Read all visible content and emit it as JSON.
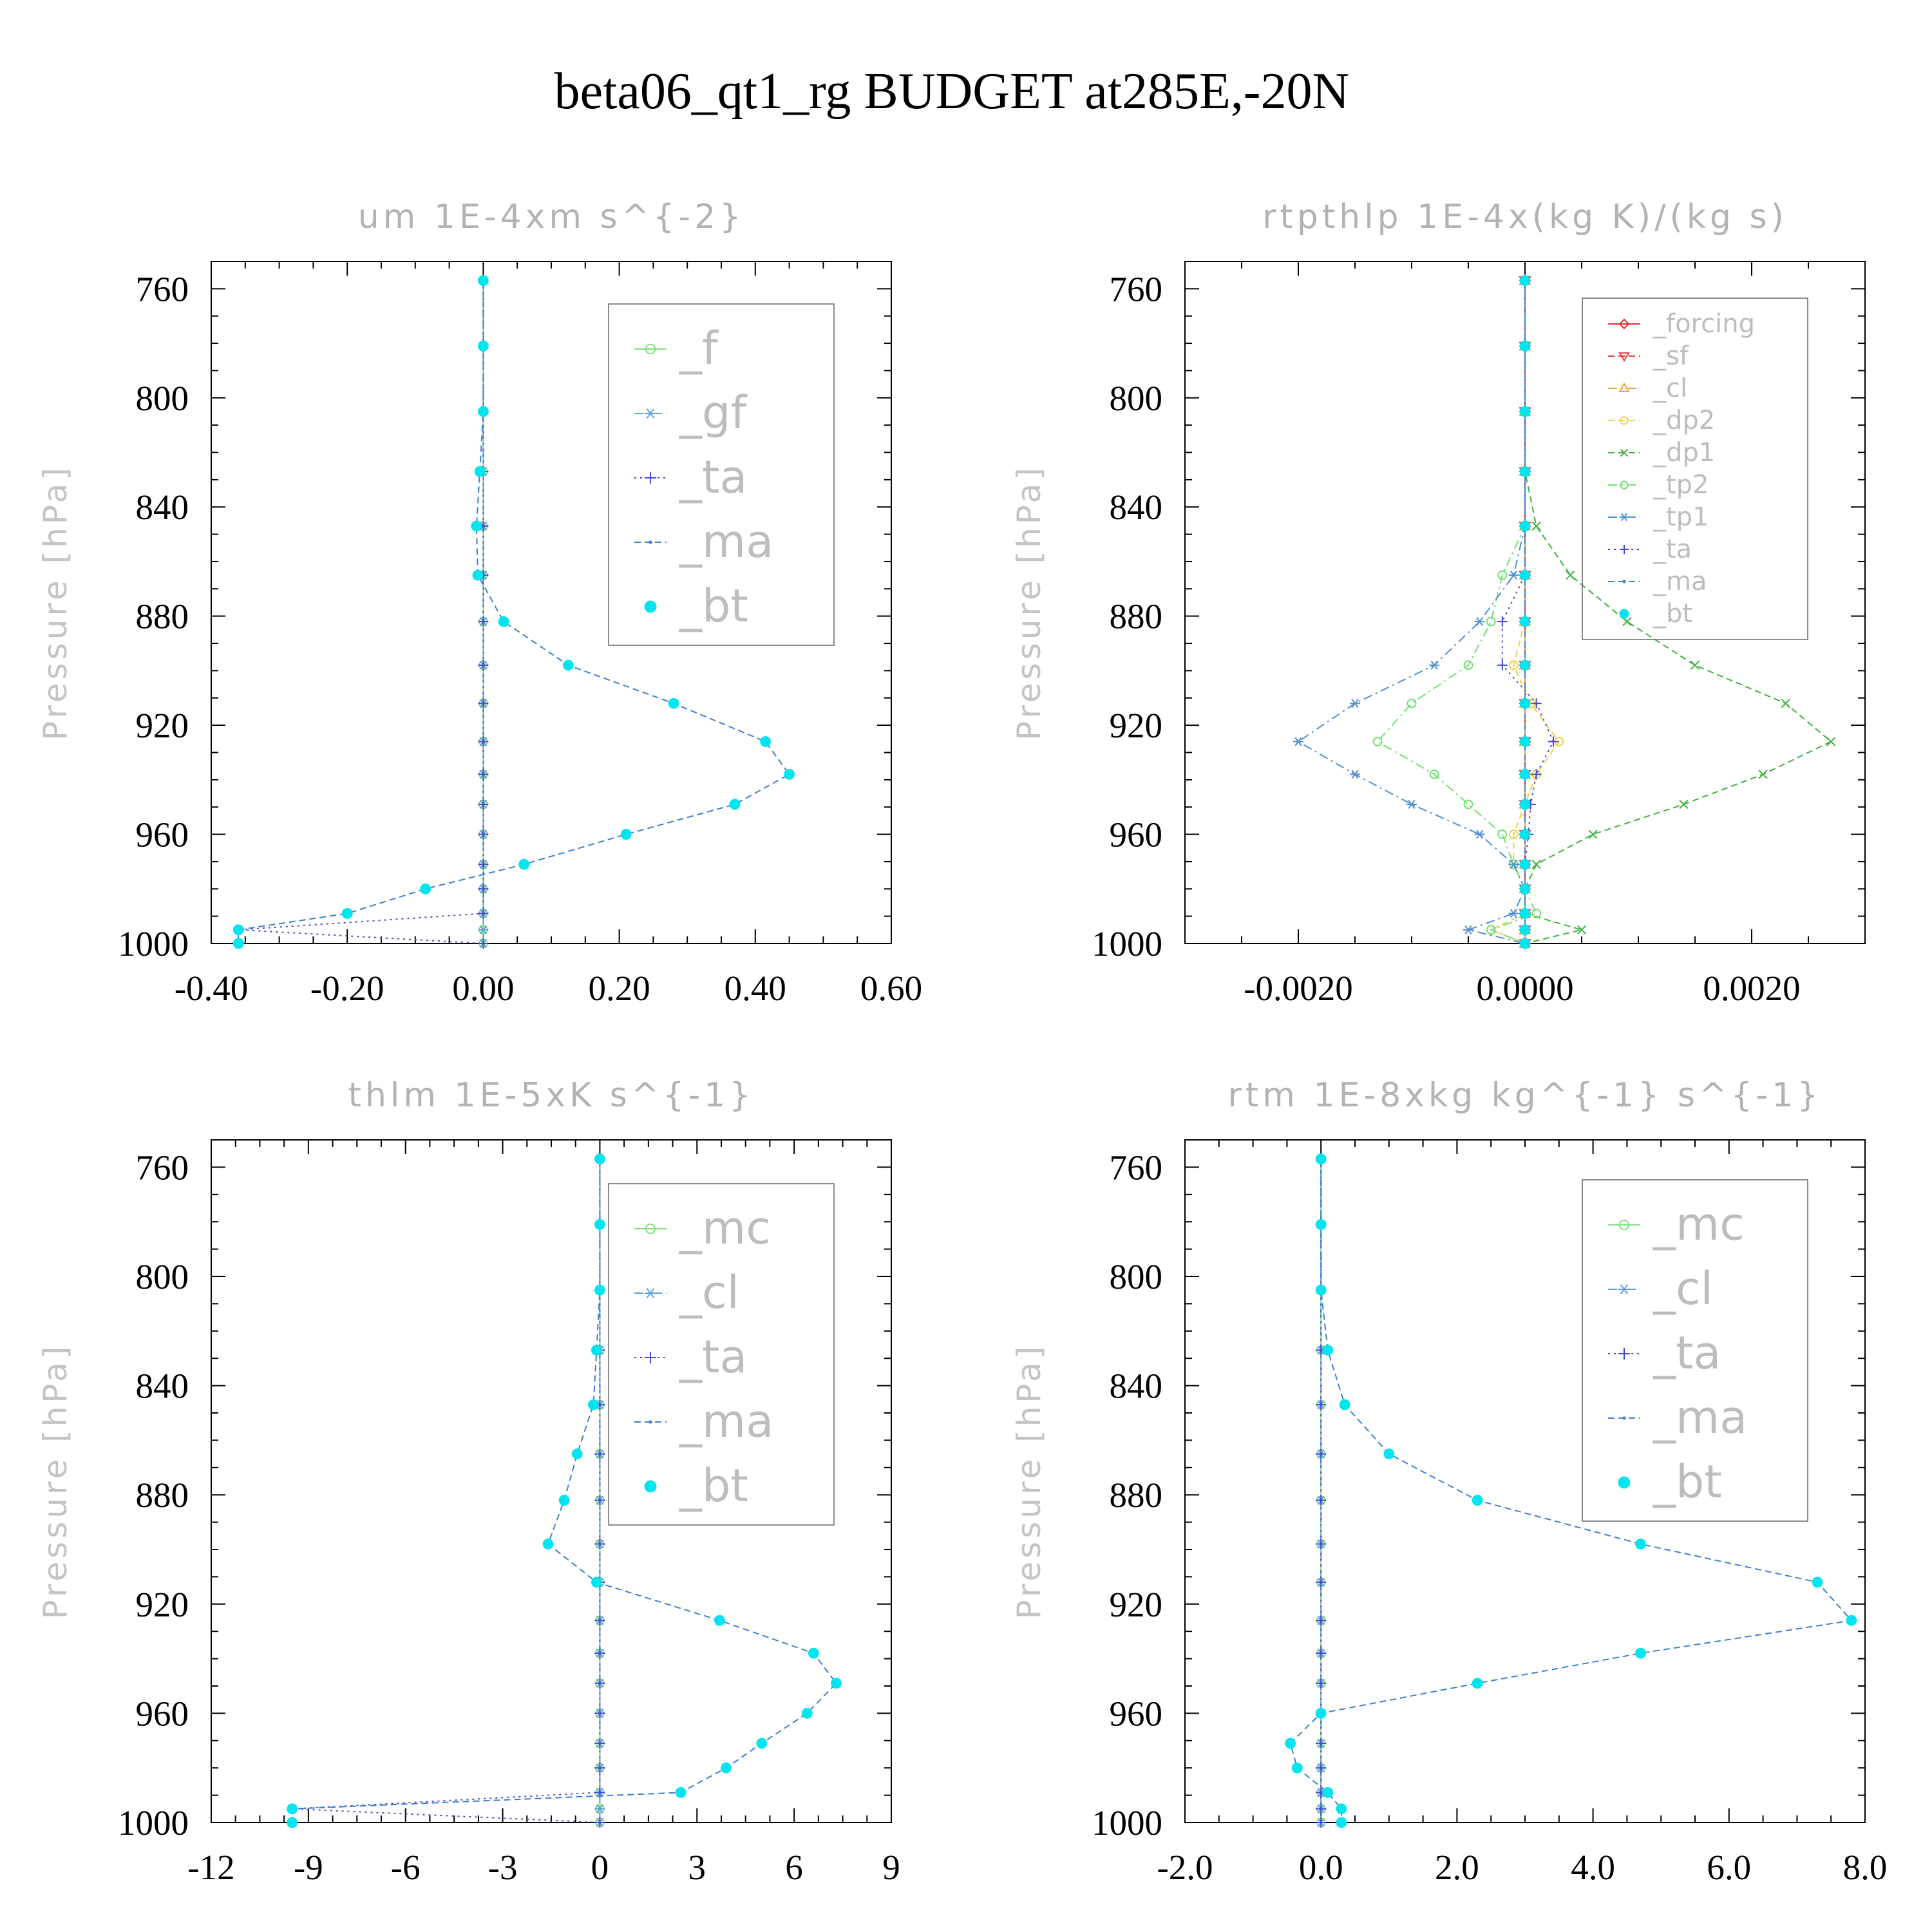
{
  "title": "beta06_qt1_rg  BUDGET at285E,-20N",
  "chart_data": [
    {
      "type": "line",
      "title": "um  1E-4xm s^{-2}",
      "ylabel": "Pressure [hPa]",
      "xlim": [
        -0.4,
        0.6
      ],
      "xticks": [
        "-0.40",
        "-0.20",
        "0.00",
        "0.20",
        "0.40",
        "0.60"
      ],
      "ylim": [
        750,
        1000
      ],
      "yticks": [
        "760",
        "800",
        "840",
        "880",
        "920",
        "960",
        "1000"
      ],
      "y": [
        757,
        781,
        805,
        827,
        847,
        865,
        882,
        898,
        912,
        926,
        938,
        949,
        960,
        971,
        980,
        989,
        995,
        1000
      ],
      "legend_placement": "upper-right",
      "series": [
        {
          "name": "_f",
          "color": "#80e080",
          "marker": "circle-open",
          "dash": "solid",
          "values": [
            0,
            0,
            0,
            0,
            0,
            0,
            0,
            0,
            0,
            0,
            0,
            0,
            0,
            0,
            0,
            0,
            0,
            0
          ]
        },
        {
          "name": "_gf",
          "color": "#5ea0d8",
          "marker": "asterisk",
          "dash": "dashdot",
          "values": [
            0,
            0,
            0,
            0,
            0,
            0,
            0,
            0,
            0,
            0,
            0,
            0,
            0,
            0,
            0,
            0,
            0,
            0
          ]
        },
        {
          "name": "_ta",
          "color": "#4848d0",
          "marker": "plus",
          "dash": "dot",
          "values": [
            0,
            0,
            0,
            0,
            0,
            0,
            0,
            0,
            0,
            0,
            0,
            0,
            0,
            0,
            0,
            0,
            -0.36,
            0
          ]
        },
        {
          "name": "_ma",
          "color": "#3d7fd0",
          "marker": "dot",
          "dash": "dash",
          "values": [
            0,
            0,
            0,
            -0.005,
            -0.01,
            -0.008,
            0.03,
            0.125,
            0.28,
            0.415,
            0.45,
            0.37,
            0.21,
            0.06,
            -0.085,
            -0.2,
            -0.36,
            -0.36
          ]
        },
        {
          "name": "_bt",
          "color": "#00e5ee",
          "marker": "dot-filled",
          "dash": "none",
          "values": [
            0,
            0,
            0,
            -0.005,
            -0.01,
            -0.008,
            0.03,
            0.125,
            0.28,
            0.415,
            0.45,
            0.37,
            0.21,
            0.06,
            -0.085,
            -0.2,
            -0.36,
            -0.36
          ]
        }
      ]
    },
    {
      "type": "line",
      "title": "rtpthlp  1E-4x(kg K)/(kg s)",
      "ylabel": "Pressure [hPa]",
      "xlim": [
        -0.003,
        0.003
      ],
      "xticks": [
        "-0.0020",
        "0.0000",
        "0.0020"
      ],
      "ylim": [
        750,
        1000
      ],
      "yticks": [
        "760",
        "800",
        "840",
        "880",
        "920",
        "960",
        "1000"
      ],
      "y": [
        757,
        781,
        805,
        827,
        847,
        865,
        882,
        898,
        912,
        926,
        938,
        949,
        960,
        971,
        980,
        989,
        995,
        1000
      ],
      "legend_placement": "upper-right",
      "series": [
        {
          "name": "_forcing",
          "color": "#e03030",
          "marker": "diamond-open",
          "dash": "solid",
          "values": [
            0,
            0,
            0,
            0,
            0,
            0,
            0,
            0,
            0,
            0,
            0,
            0,
            0,
            0,
            0,
            0,
            0,
            0
          ]
        },
        {
          "name": "_sf",
          "color": "#e04040",
          "marker": "tri-down",
          "dash": "dash",
          "values": [
            0,
            0,
            0,
            0,
            0,
            0,
            0,
            0,
            0,
            0,
            0,
            0,
            0,
            0,
            0,
            0,
            0,
            0
          ]
        },
        {
          "name": "_cl",
          "color": "#f0a040",
          "marker": "tri-up",
          "dash": "dashdot",
          "values": [
            0,
            0,
            0,
            0,
            0,
            0,
            0,
            0,
            0,
            0,
            0,
            0,
            0,
            0,
            0,
            0,
            0,
            0
          ]
        },
        {
          "name": "_dp2",
          "color": "#f0d040",
          "marker": "circle-open",
          "dash": "dash",
          "values": [
            0,
            0,
            0,
            0,
            0,
            0,
            0,
            -0.0001,
            5e-05,
            0.0003,
            0.0001,
            0,
            -0.0001,
            -0.0001,
            0,
            0,
            -0.0003,
            0
          ]
        },
        {
          "name": "_dp1",
          "color": "#40b040",
          "marker": "x",
          "dash": "dash",
          "values": [
            0,
            0,
            0,
            0,
            0.0001,
            0.0004,
            0.0009,
            0.0015,
            0.0023,
            0.0027,
            0.0021,
            0.0014,
            0.0006,
            0.0001,
            0,
            0,
            0.0005,
            0
          ]
        },
        {
          "name": "_tp2",
          "color": "#70e070",
          "marker": "circle-open",
          "dash": "dashdot",
          "values": [
            0,
            0,
            0,
            0,
            0,
            -0.0002,
            -0.0003,
            -0.0005,
            -0.001,
            -0.0013,
            -0.0008,
            -0.0005,
            -0.0002,
            -0.0001,
            0,
            0.0001,
            -0.0003,
            0
          ]
        },
        {
          "name": "_tp1",
          "color": "#5090d0",
          "marker": "asterisk",
          "dash": "dashdot",
          "values": [
            0,
            0,
            0,
            0,
            0,
            -0.0001,
            -0.0004,
            -0.0008,
            -0.0015,
            -0.002,
            -0.0015,
            -0.001,
            -0.0004,
            -0.0001,
            0,
            -0.0001,
            -0.0005,
            0
          ]
        },
        {
          "name": "_ta",
          "color": "#4848d0",
          "marker": "plus",
          "dash": "dot",
          "values": [
            0,
            0,
            0,
            0,
            0,
            0,
            -0.0002,
            -0.0002,
            0.0001,
            0.00025,
            0.0001,
            5e-05,
            3e-05,
            0,
            0,
            0,
            0,
            0
          ]
        },
        {
          "name": "_ma",
          "color": "#3d7fd0",
          "marker": "dot",
          "dash": "dash",
          "values": [
            0,
            0,
            0,
            0,
            0,
            0,
            0,
            0,
            0,
            0,
            0,
            0,
            0,
            0,
            0,
            0,
            0,
            0
          ]
        },
        {
          "name": "_bt",
          "color": "#00e5ee",
          "marker": "dot-filled",
          "dash": "none",
          "values": [
            0,
            0,
            0,
            0,
            0,
            0,
            0,
            0,
            0,
            0,
            0,
            0,
            0,
            0,
            0,
            0,
            0,
            0
          ]
        }
      ]
    },
    {
      "type": "line",
      "title": "thlm  1E-5xK s^{-1}",
      "ylabel": "Pressure [hPa]",
      "xlim": [
        -12,
        9
      ],
      "xticks": [
        "-12",
        "-9",
        "-6",
        "-3",
        "0",
        "3",
        "6",
        "9"
      ],
      "ylim": [
        750,
        1000
      ],
      "yticks": [
        "760",
        "800",
        "840",
        "880",
        "920",
        "960",
        "1000"
      ],
      "y": [
        757,
        781,
        805,
        827,
        847,
        865,
        882,
        898,
        912,
        926,
        938,
        949,
        960,
        971,
        980,
        989,
        995,
        1000
      ],
      "legend_placement": "upper-right",
      "series": [
        {
          "name": "_mc",
          "color": "#80e080",
          "marker": "circle-open",
          "dash": "solid",
          "values": [
            0,
            0,
            0,
            0,
            0,
            0,
            0,
            0,
            0,
            0,
            0,
            0,
            0,
            0,
            0,
            0,
            0,
            0
          ]
        },
        {
          "name": "_cl",
          "color": "#5ea0d8",
          "marker": "asterisk",
          "dash": "dashdot",
          "values": [
            0,
            0,
            0,
            0,
            0,
            0,
            0,
            0,
            0,
            0,
            0,
            0,
            0,
            0,
            0,
            0,
            0,
            0
          ]
        },
        {
          "name": "_ta",
          "color": "#4848d0",
          "marker": "plus",
          "dash": "dot",
          "values": [
            0,
            0,
            0,
            0,
            0,
            0,
            0,
            0,
            0,
            0,
            0,
            0,
            0,
            0,
            0,
            0,
            -9.5,
            0
          ]
        },
        {
          "name": "_ma",
          "color": "#3d7fd0",
          "marker": "dot",
          "dash": "dash",
          "values": [
            0,
            0,
            0,
            -0.1,
            -0.2,
            -0.7,
            -1.1,
            -1.6,
            -0.1,
            3.7,
            6.6,
            7.3,
            6.4,
            5.0,
            3.9,
            2.5,
            -9.5,
            -9.5
          ]
        },
        {
          "name": "_bt",
          "color": "#00e5ee",
          "marker": "dot-filled",
          "dash": "none",
          "values": [
            0,
            0,
            0,
            -0.1,
            -0.2,
            -0.7,
            -1.1,
            -1.6,
            -0.1,
            3.7,
            6.6,
            7.3,
            6.4,
            5.0,
            3.9,
            2.5,
            -9.5,
            -9.5
          ]
        }
      ]
    },
    {
      "type": "line",
      "title": "rtm  1E-8xkg kg^{-1} s^{-1}",
      "ylabel": "Pressure [hPa]",
      "xlim": [
        -2.0,
        8.0
      ],
      "xticks": [
        "-2.0",
        "0.0",
        "2.0",
        "4.0",
        "6.0",
        "8.0"
      ],
      "ylim": [
        750,
        1000
      ],
      "yticks": [
        "760",
        "800",
        "840",
        "880",
        "920",
        "960",
        "1000"
      ],
      "y": [
        757,
        781,
        805,
        827,
        847,
        865,
        882,
        898,
        912,
        926,
        938,
        949,
        960,
        971,
        980,
        989,
        995,
        1000
      ],
      "legend_placement": "upper-right",
      "series": [
        {
          "name": "_mc",
          "color": "#80e080",
          "marker": "circle-open",
          "dash": "solid",
          "values": [
            0,
            0,
            0,
            0,
            0,
            0,
            0,
            0,
            0,
            0,
            0,
            0,
            0,
            0,
            0,
            0,
            0,
            0
          ]
        },
        {
          "name": "_cl",
          "color": "#5ea0d8",
          "marker": "asterisk",
          "dash": "dashdot",
          "values": [
            0,
            0,
            0,
            0,
            0,
            0,
            0,
            0,
            0,
            0,
            0,
            0,
            0,
            0,
            0,
            0,
            0,
            0
          ]
        },
        {
          "name": "_ta",
          "color": "#4848d0",
          "marker": "plus",
          "dash": "dot",
          "values": [
            0,
            0,
            0,
            0,
            0,
            0,
            0,
            0,
            0,
            0,
            0,
            0,
            0,
            0,
            0,
            0,
            0,
            0
          ]
        },
        {
          "name": "_ma",
          "color": "#3d7fd0",
          "marker": "dot",
          "dash": "dash",
          "values": [
            0,
            0,
            0,
            0.1,
            0.35,
            1.0,
            2.3,
            4.7,
            7.3,
            7.8,
            4.7,
            2.3,
            0,
            -0.45,
            -0.35,
            0.1,
            0.3,
            0.3
          ]
        },
        {
          "name": "_bt",
          "color": "#00e5ee",
          "marker": "dot-filled",
          "dash": "none",
          "values": [
            0,
            0,
            0,
            0.1,
            0.35,
            1.0,
            2.3,
            4.7,
            7.3,
            7.8,
            4.7,
            2.3,
            0,
            -0.45,
            -0.35,
            0.1,
            0.3,
            0.3
          ]
        }
      ]
    }
  ]
}
